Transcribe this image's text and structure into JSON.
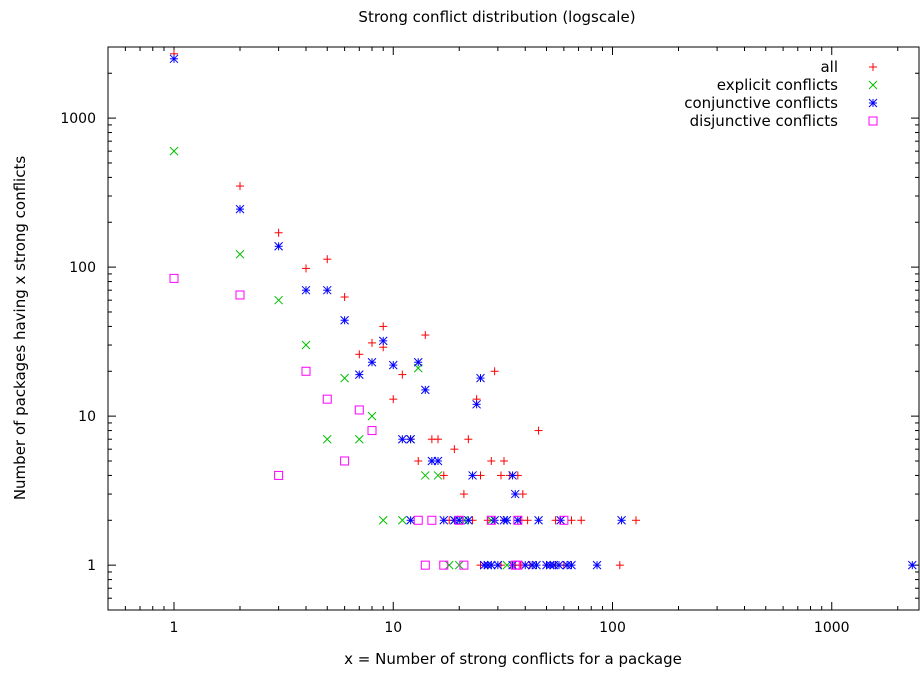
{
  "chart_data": {
    "type": "scatter",
    "title": "Strong conflict distribution (logscale)",
    "xlabel": "x = Number of strong conflicts for a package",
    "ylabel": "Number of packages having x strong conflicts",
    "xscale": "log",
    "yscale": "log",
    "xlim": [
      0.5,
      2500
    ],
    "ylim": [
      0.5,
      3000
    ],
    "x_ticks": [
      {
        "value": 1,
        "label": "1"
      },
      {
        "value": 10,
        "label": "10"
      },
      {
        "value": 100,
        "label": "100"
      },
      {
        "value": 1000,
        "label": "1000"
      }
    ],
    "y_ticks": [
      {
        "value": 1,
        "label": "1"
      },
      {
        "value": 10,
        "label": "10"
      },
      {
        "value": 100,
        "label": "100"
      },
      {
        "value": 1000,
        "label": "1000"
      }
    ],
    "grid": false,
    "legend_position": "top-right",
    "series": [
      {
        "name": "all",
        "marker": "plus",
        "color": "#ff0000",
        "points": [
          [
            1,
            2700
          ],
          [
            2,
            350
          ],
          [
            3,
            170
          ],
          [
            4,
            98
          ],
          [
            5,
            113
          ],
          [
            6,
            63
          ],
          [
            7,
            26
          ],
          [
            8,
            31
          ],
          [
            9,
            40
          ],
          [
            9,
            29
          ],
          [
            10,
            13
          ],
          [
            11,
            19
          ],
          [
            12,
            7
          ],
          [
            13,
            5
          ],
          [
            14,
            35
          ],
          [
            15,
            7
          ],
          [
            16,
            7
          ],
          [
            17,
            4
          ],
          [
            19,
            6
          ],
          [
            21,
            3
          ],
          [
            22,
            7
          ],
          [
            24,
            13
          ],
          [
            25,
            4
          ],
          [
            28,
            5
          ],
          [
            29,
            20
          ],
          [
            31,
            4
          ],
          [
            32,
            5
          ],
          [
            34,
            4
          ],
          [
            37,
            4
          ],
          [
            39,
            3
          ],
          [
            46,
            8
          ],
          [
            18,
            2
          ],
          [
            23,
            2
          ],
          [
            27,
            2
          ],
          [
            32,
            2
          ],
          [
            38,
            2
          ],
          [
            41,
            2
          ],
          [
            55,
            2
          ],
          [
            65,
            2
          ],
          [
            72,
            2
          ],
          [
            128,
            2
          ],
          [
            25,
            1
          ],
          [
            31,
            1
          ],
          [
            36,
            1
          ],
          [
            38,
            1
          ],
          [
            42,
            1
          ],
          [
            50,
            1
          ],
          [
            55,
            1
          ],
          [
            60,
            1
          ],
          [
            108,
            1
          ]
        ]
      },
      {
        "name": "explicit conflicts",
        "marker": "cross",
        "color": "#00c000",
        "points": [
          [
            1,
            600
          ],
          [
            2,
            122
          ],
          [
            3,
            60
          ],
          [
            4,
            30
          ],
          [
            5,
            7
          ],
          [
            6,
            18
          ],
          [
            7,
            7
          ],
          [
            8,
            10
          ],
          [
            9,
            2
          ],
          [
            11,
            2
          ],
          [
            12,
            7
          ],
          [
            13,
            21
          ],
          [
            14,
            4
          ],
          [
            16,
            4
          ],
          [
            19,
            2
          ],
          [
            21,
            2
          ],
          [
            28,
            2
          ],
          [
            18,
            1
          ],
          [
            20,
            1
          ],
          [
            33,
            1
          ]
        ]
      },
      {
        "name": "conjunctive conflicts",
        "marker": "star",
        "color": "#0000ff",
        "points": [
          [
            1,
            2500
          ],
          [
            2,
            245
          ],
          [
            3,
            138
          ],
          [
            4,
            70
          ],
          [
            5,
            70
          ],
          [
            6,
            44
          ],
          [
            7,
            19
          ],
          [
            8,
            23
          ],
          [
            9,
            32
          ],
          [
            10,
            22
          ],
          [
            11,
            7
          ],
          [
            12,
            7
          ],
          [
            13,
            23
          ],
          [
            14,
            15
          ],
          [
            15,
            5
          ],
          [
            16,
            5
          ],
          [
            23,
            4
          ],
          [
            24,
            12
          ],
          [
            25,
            18
          ],
          [
            35,
            4
          ],
          [
            36,
            3
          ],
          [
            12,
            2
          ],
          [
            17,
            2
          ],
          [
            19,
            2
          ],
          [
            20,
            2
          ],
          [
            22,
            2
          ],
          [
            29,
            2
          ],
          [
            32,
            2
          ],
          [
            33,
            2
          ],
          [
            37,
            2
          ],
          [
            46,
            2
          ],
          [
            58,
            2
          ],
          [
            110,
            2
          ],
          [
            26,
            1
          ],
          [
            27,
            1
          ],
          [
            28,
            1
          ],
          [
            30,
            1
          ],
          [
            35,
            1
          ],
          [
            40,
            1
          ],
          [
            43,
            1
          ],
          [
            45,
            1
          ],
          [
            50,
            1
          ],
          [
            52,
            1
          ],
          [
            54,
            1
          ],
          [
            57,
            1
          ],
          [
            62,
            1
          ],
          [
            65,
            1
          ],
          [
            85,
            1
          ],
          [
            2330,
            1
          ]
        ]
      },
      {
        "name": "disjunctive conflicts",
        "marker": "square",
        "color": "#ff00ff",
        "points": [
          [
            1,
            84
          ],
          [
            2,
            65
          ],
          [
            3,
            4
          ],
          [
            4,
            20
          ],
          [
            5,
            13
          ],
          [
            6,
            5
          ],
          [
            7,
            11
          ],
          [
            8,
            8
          ],
          [
            13,
            2
          ],
          [
            15,
            2
          ],
          [
            20,
            2
          ],
          [
            28,
            2
          ],
          [
            37,
            2
          ],
          [
            60,
            2
          ],
          [
            14,
            1
          ],
          [
            17,
            1
          ],
          [
            21,
            1
          ],
          [
            36,
            1
          ],
          [
            37,
            1
          ]
        ]
      }
    ]
  }
}
